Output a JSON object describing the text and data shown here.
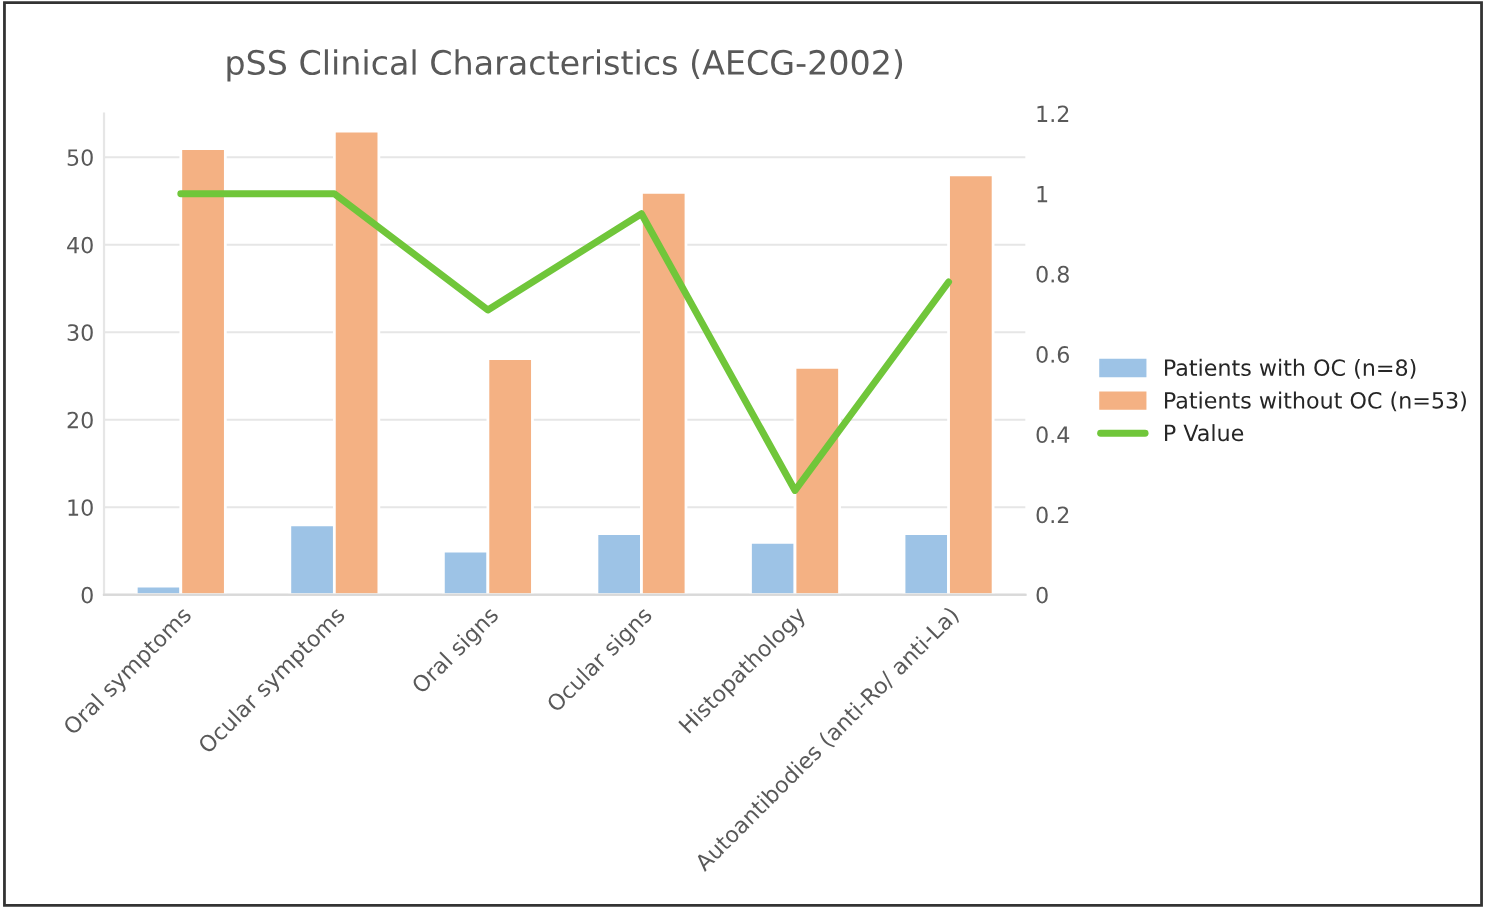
{
  "chart_data": {
    "type": "bar",
    "title": "pSS Clinical Characteristics (AECG-2002)",
    "categories": [
      "Oral symptoms",
      "Ocular symptoms",
      "Oral signs",
      "Ocular signs",
      "Histopathology",
      "Autoantibodies (anti-Ro/ anti-La)"
    ],
    "series": [
      {
        "name": "Patients with OC (n=8)",
        "color": "#9dc3e6",
        "values": [
          1,
          8,
          5,
          7,
          6,
          7
        ]
      },
      {
        "name": "Patients without OC (n=53)",
        "color": "#f4b183",
        "values": [
          51,
          53,
          27,
          46,
          26,
          48
        ]
      },
      {
        "name": "P Value",
        "color": "#70c63a",
        "type": "line",
        "axis": "y2",
        "values": [
          1,
          1,
          0.71,
          0.95,
          0.26,
          0.78
        ]
      }
    ],
    "ylim": [
      0,
      55
    ],
    "yticks": [
      0,
      10,
      20,
      30,
      40,
      50
    ],
    "y2lim": [
      0,
      1.2
    ],
    "y2ticks": [
      0,
      0.2,
      0.4,
      0.6,
      0.8,
      1,
      1.2
    ],
    "grid": "y",
    "legend": "right"
  }
}
